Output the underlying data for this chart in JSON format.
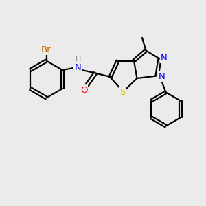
{
  "bg_color": "#ebebeb",
  "bond_color": "#000000",
  "bond_lw": 1.6,
  "atom_colors": {
    "Br": "#cc6600",
    "N": "#0000ff",
    "O": "#ff0000",
    "S": "#cccc00",
    "H": "#888888",
    "C": "#000000"
  },
  "font_size": 9.5,
  "fig_w": 3.0,
  "fig_h": 3.0,
  "dpi": 100
}
